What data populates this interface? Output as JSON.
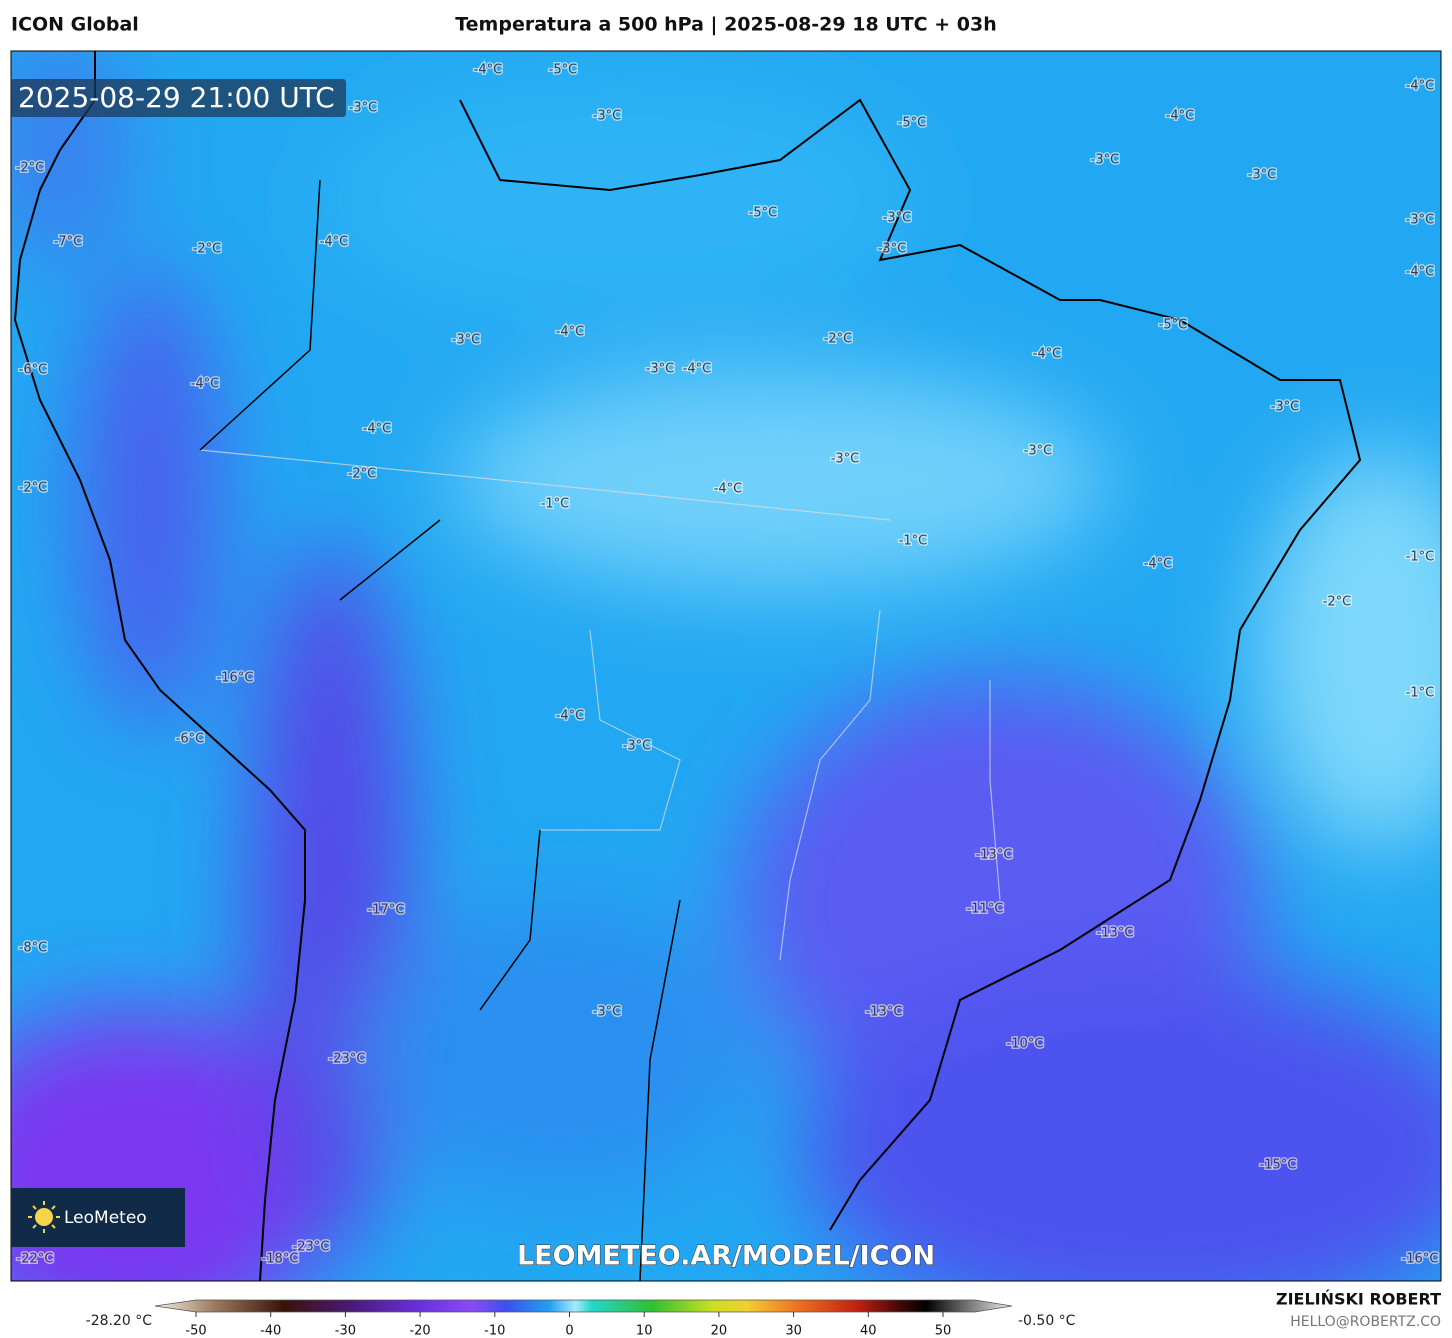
{
  "header": {
    "model": "ICON Global",
    "title": "Temperatura a 500 hPa | 2025-08-29 18 UTC + 03h"
  },
  "map": {
    "timestamp": "2025-08-29 21:00 UTC",
    "watermark": "LEOMETEO.AR/MODEL/ICON",
    "logo": "LeoMeteo",
    "labels": [
      "-4°C",
      "-5°C",
      "-3°C",
      "-5°C",
      "-4°C",
      "-3°C",
      "-3°C",
      "-4°C",
      "-3°C",
      "-4°C",
      "-3°C",
      "-2°C",
      "-7°C",
      "-2°C",
      "-4°C",
      "-5°C",
      "-3°C",
      "-3°C",
      "-6°C",
      "-3°C",
      "-4°C",
      "-3°C",
      "-4°C",
      "-2°C",
      "-4°C",
      "-5°C",
      "-3°C",
      "-4°C",
      "-4°C",
      "-2°C",
      "-2°C",
      "-1°C",
      "-4°C",
      "-3°C",
      "-3°C",
      "-1°C",
      "-1°C",
      "-2°C",
      "-4°C",
      "-1°C",
      "-16°C",
      "-6°C",
      "-4°C",
      "-3°C",
      "-13°C",
      "-11°C",
      "-13°C",
      "-17°C",
      "-8°C",
      "-3°C",
      "-13°C",
      "-10°C",
      "-23°C",
      "-15°C",
      "-16°C",
      "-22°C",
      "-18°C",
      "-23°C"
    ]
  },
  "colorbar": {
    "min_label": "-28.20 °C",
    "max_label": "-0.50 °C",
    "ticks": [
      -50,
      -40,
      -30,
      -20,
      -10,
      0,
      10,
      20,
      30,
      40,
      50
    ]
  },
  "footer": {
    "author": "ZIELIŃSKI ROBERT",
    "contact": "HELLO@ROBERTZ.CO"
  }
}
